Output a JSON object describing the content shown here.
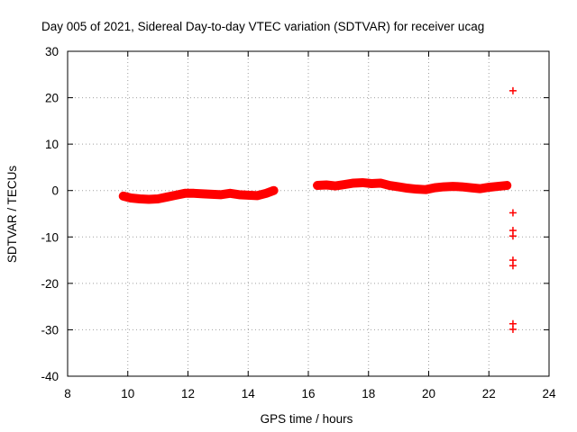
{
  "chart_data": {
    "type": "scatter",
    "title": "Day 005 of 2021, Sidereal Day-to-day VTEC variation (SDTVAR) for receiver ucag",
    "xlabel": "GPS time / hours",
    "ylabel": "SDTVAR / TECUs",
    "xlim": [
      8,
      24
    ],
    "ylim": [
      -40,
      30
    ],
    "xticks": [
      8,
      10,
      12,
      14,
      16,
      18,
      20,
      22,
      24
    ],
    "yticks": [
      -40,
      -30,
      -20,
      -10,
      0,
      10,
      20,
      30
    ],
    "grid": true,
    "marker": "+",
    "color": "#ff0000",
    "series": [
      {
        "name": "SDTVAR",
        "x": [
          9.85,
          10.1,
          10.4,
          10.7,
          11.0,
          11.3,
          11.6,
          11.9,
          12.2,
          12.5,
          12.8,
          13.1,
          13.4,
          13.7,
          14.0,
          14.3,
          14.6,
          14.85,
          16.3,
          16.6,
          16.9,
          17.2,
          17.5,
          17.8,
          18.1,
          18.4,
          18.7,
          19.0,
          19.3,
          19.6,
          19.9,
          20.2,
          20.5,
          20.8,
          21.1,
          21.4,
          21.7,
          22.0,
          22.3,
          22.6,
          22.8,
          22.8,
          22.8,
          22.8,
          22.8,
          22.8,
          22.8,
          22.8
        ],
        "y": [
          -1.2,
          -1.6,
          -1.8,
          -1.9,
          -1.8,
          -1.4,
          -1.0,
          -0.6,
          -0.6,
          -0.7,
          -0.8,
          -0.9,
          -0.6,
          -0.9,
          -1.0,
          -1.1,
          -0.6,
          0.0,
          1.1,
          1.2,
          1.0,
          1.3,
          1.6,
          1.7,
          1.5,
          1.6,
          1.1,
          0.8,
          0.5,
          0.3,
          0.2,
          0.6,
          0.8,
          0.9,
          0.8,
          0.6,
          0.4,
          0.7,
          0.9,
          1.1,
          21.5,
          -4.8,
          -8.6,
          -9.8,
          -15.0,
          -16.2,
          -28.7,
          -29.9
        ]
      }
    ]
  }
}
